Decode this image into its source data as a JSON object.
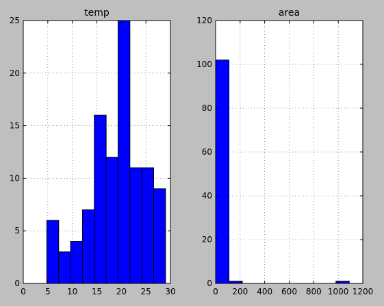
{
  "chart_data": [
    {
      "type": "bar",
      "title": "temp",
      "bin_edges": [
        4.8,
        7.22,
        9.64,
        12.06,
        14.48,
        16.9,
        19.32,
        21.74,
        24.16,
        26.58,
        29.0
      ],
      "values": [
        6,
        3,
        4,
        7,
        16,
        12,
        25,
        11,
        11,
        9
      ],
      "xlim": [
        0,
        30
      ],
      "ylim": [
        0,
        25
      ],
      "xticks": [
        0,
        5,
        10,
        15,
        20,
        25,
        30
      ],
      "yticks": [
        0,
        5,
        10,
        15,
        20,
        25
      ],
      "xtick_labels": [
        "0",
        "5",
        "10",
        "15",
        "20",
        "25",
        "30"
      ],
      "ytick_labels": [
        "0",
        "5",
        "10",
        "15",
        "20",
        "25"
      ],
      "grid": true,
      "color": "#0000ff"
    },
    {
      "type": "bar",
      "title": "area",
      "bin_edges": [
        0,
        109,
        218,
        327,
        436,
        545,
        654,
        763,
        872,
        981,
        1090
      ],
      "values": [
        102,
        1,
        0,
        0,
        0,
        0,
        0,
        0,
        0,
        1
      ],
      "xlim": [
        0,
        1200
      ],
      "ylim": [
        0,
        120
      ],
      "xticks": [
        0,
        200,
        400,
        600,
        800,
        1000,
        1200
      ],
      "yticks": [
        0,
        20,
        40,
        60,
        80,
        100,
        120
      ],
      "xtick_labels": [
        "0",
        "200",
        "400",
        "600",
        "800",
        "1000",
        "1200"
      ],
      "ytick_labels": [
        "0",
        "20",
        "40",
        "60",
        "80",
        "100",
        "120"
      ],
      "grid": true,
      "color": "#0000ff"
    }
  ]
}
